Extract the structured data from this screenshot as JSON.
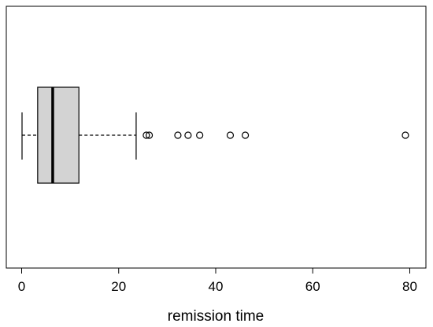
{
  "chart_data": {
    "type": "boxplot",
    "orientation": "horizontal",
    "xlabel": "remission time",
    "xlim": [
      -3,
      82
    ],
    "ticks": [
      0,
      20,
      40,
      60,
      80
    ],
    "tick_labels": [
      "0",
      "20",
      "40",
      "60",
      "80"
    ],
    "box": {
      "whisker_low": 0.08,
      "q1": 3.3,
      "median": 6.4,
      "q3": 11.8,
      "whisker_high": 23.6
    },
    "outliers": [
      25.7,
      26.3,
      32.2,
      34.3,
      36.7,
      43.0,
      46.1,
      79.1
    ],
    "box_fill": "#d3d3d3",
    "line_color": "#000000"
  }
}
